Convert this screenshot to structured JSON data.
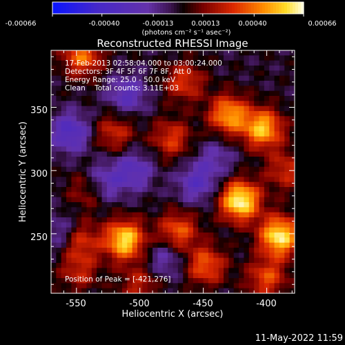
{
  "chart_data": {
    "type": "heatmap",
    "title": "Reconstructed RHESSI Image",
    "xlabel": "Heliocentric X (arcsec)",
    "ylabel": "Heliocentric Y (arcsec)",
    "xlim": [
      -570,
      -378
    ],
    "ylim": [
      203,
      395
    ],
    "x_ticks": [
      -550,
      -500,
      -450,
      -400
    ],
    "y_ticks": [
      250,
      300,
      350
    ],
    "colorbar": {
      "min": -0.00066,
      "max": 0.00066,
      "ticks": [
        "-0.00066",
        "-0.00040",
        "-0.00013",
        "0.00013",
        "0.00040",
        "0.00066"
      ],
      "units": "(photons cm⁻² s⁻¹ asec⁻²)"
    },
    "annotations": [
      "17-Feb-2013 02:58:04.000 to 03:00:24.000",
      "Detectors: 3F 4F 5F 6F 7F 8F, Att 0",
      "Energy Range: 25.0 - 50.0 keV",
      "Clean    Total counts: 3.11E+03",
      "Position of Peak = [-421,276]"
    ],
    "peak": [
      -421,
      276
    ],
    "sources": [
      {
        "x": -421,
        "y": 276,
        "amp": 1.0
      },
      {
        "x": -390,
        "y": 248,
        "amp": 0.95
      },
      {
        "x": -512,
        "y": 245,
        "amp": 0.9
      },
      {
        "x": -403,
        "y": 333,
        "amp": 0.8
      },
      {
        "x": -430,
        "y": 344,
        "amp": 0.72
      },
      {
        "x": -470,
        "y": 252,
        "amp": 0.55
      },
      {
        "x": -448,
        "y": 225,
        "amp": 0.55
      },
      {
        "x": -400,
        "y": 215,
        "amp": 0.5
      },
      {
        "x": -545,
        "y": 390,
        "amp": 0.6
      },
      {
        "x": -475,
        "y": 325,
        "amp": 0.45
      },
      {
        "x": -548,
        "y": 245,
        "amp": 0.5
      },
      {
        "x": -520,
        "y": 330,
        "amp": 0.4
      },
      {
        "x": -500,
        "y": 210,
        "amp": 0.35
      },
      {
        "x": -548,
        "y": 220,
        "amp": 0.35
      },
      {
        "x": -540,
        "y": 285,
        "amp": 0.4
      },
      {
        "x": -465,
        "y": 370,
        "amp": 0.45
      },
      {
        "x": -385,
        "y": 300,
        "amp": 0.4
      },
      {
        "x": -555,
        "y": 330,
        "amp": -0.5
      },
      {
        "x": -530,
        "y": 290,
        "amp": -0.45
      },
      {
        "x": -505,
        "y": 300,
        "amp": -0.4
      },
      {
        "x": -510,
        "y": 360,
        "amp": -0.4
      },
      {
        "x": -455,
        "y": 290,
        "amp": -0.4
      },
      {
        "x": -480,
        "y": 230,
        "amp": -0.3
      },
      {
        "x": -560,
        "y": 250,
        "amp": -0.35
      },
      {
        "x": -440,
        "y": 310,
        "amp": -0.25
      }
    ]
  },
  "footer": {
    "timestamp": "11-May-2022 11:59"
  }
}
